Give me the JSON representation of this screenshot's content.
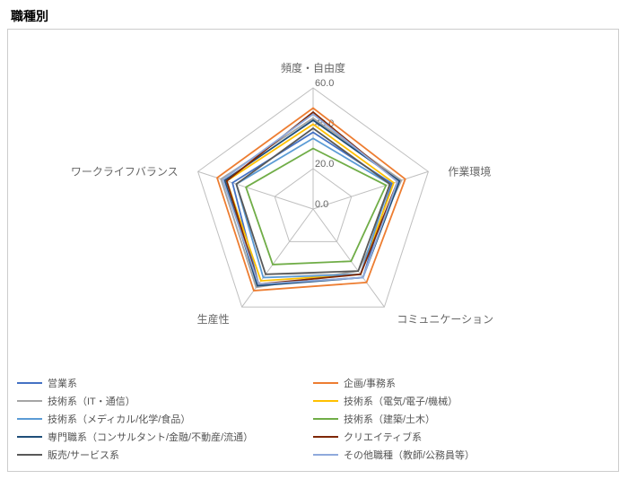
{
  "title": "職種別",
  "chart": {
    "type": "radar",
    "axes": [
      "頻度・自由度",
      "作業環境",
      "コミュニケーション",
      "生産性",
      "ワークライフバランス"
    ],
    "axis_fontsize": 12,
    "axis_color": "#666666",
    "rings": [
      0.0,
      20.0,
      40.0,
      60.0
    ],
    "ring_labels": [
      "0.0",
      "20.0",
      "40.0",
      "60.0"
    ],
    "max": 60,
    "grid_color": "#bfbfbf",
    "background": "#ffffff",
    "series": [
      {
        "name": "営業系",
        "color": "#4472c4",
        "values": [
          38,
          41,
          42,
          46,
          42
        ]
      },
      {
        "name": "企画/事務系",
        "color": "#ed7d31",
        "values": [
          50,
          48,
          45,
          50,
          50
        ]
      },
      {
        "name": "技術系（IT・通信）",
        "color": "#a5a5a5",
        "values": [
          45,
          46,
          38,
          48,
          48
        ]
      },
      {
        "name": "技術系（電気/電子/機械）",
        "color": "#ffc000",
        "values": [
          42,
          42,
          40,
          44,
          45
        ]
      },
      {
        "name": "技術系（メディカル/化学/食品）",
        "color": "#5b9bd5",
        "values": [
          35,
          40,
          40,
          42,
          40
        ]
      },
      {
        "name": "技術系（建築/土木）",
        "color": "#70ad47",
        "values": [
          30,
          38,
          32,
          34,
          35
        ]
      },
      {
        "name": "専門職系（コンサルタント/金融/不動産/流通）",
        "color": "#1f4e79",
        "values": [
          44,
          45,
          42,
          47,
          46
        ]
      },
      {
        "name": "クリエイティブ系",
        "color": "#7f2704",
        "values": [
          48,
          44,
          40,
          46,
          45
        ]
      },
      {
        "name": "販売/サービス系",
        "color": "#595959",
        "values": [
          40,
          40,
          38,
          40,
          40
        ]
      },
      {
        "name": "その他職種（教師/公務員等）",
        "color": "#8faadc",
        "values": [
          47,
          44,
          42,
          46,
          47
        ]
      }
    ]
  },
  "legend_layout": [
    [
      0,
      1
    ],
    [
      2,
      3
    ],
    [
      4,
      5
    ],
    [
      6,
      7
    ],
    [
      8,
      9
    ]
  ]
}
